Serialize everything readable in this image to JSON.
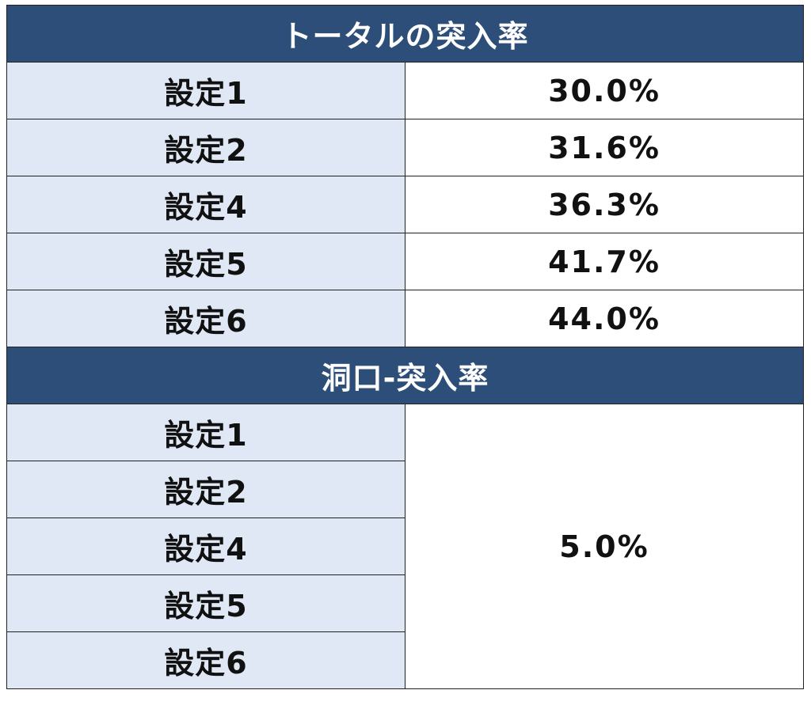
{
  "colors": {
    "header_bg": "#2d4e78",
    "header_text": "#ffffff",
    "label_bg": "#dfe8f4",
    "value_bg": "#ffffff"
  },
  "section_total": {
    "title": "トータルの突入率",
    "rows": [
      {
        "label": "設定1",
        "value": "30.0%"
      },
      {
        "label": "設定2",
        "value": "31.6%"
      },
      {
        "label": "設定4",
        "value": "36.3%"
      },
      {
        "label": "設定5",
        "value": "41.7%"
      },
      {
        "label": "設定6",
        "value": "44.0%"
      }
    ]
  },
  "section_cave": {
    "title": "洞口-突入率",
    "labels": [
      "設定1",
      "設定2",
      "設定4",
      "設定5",
      "設定6"
    ],
    "shared_value": "5.0%"
  }
}
